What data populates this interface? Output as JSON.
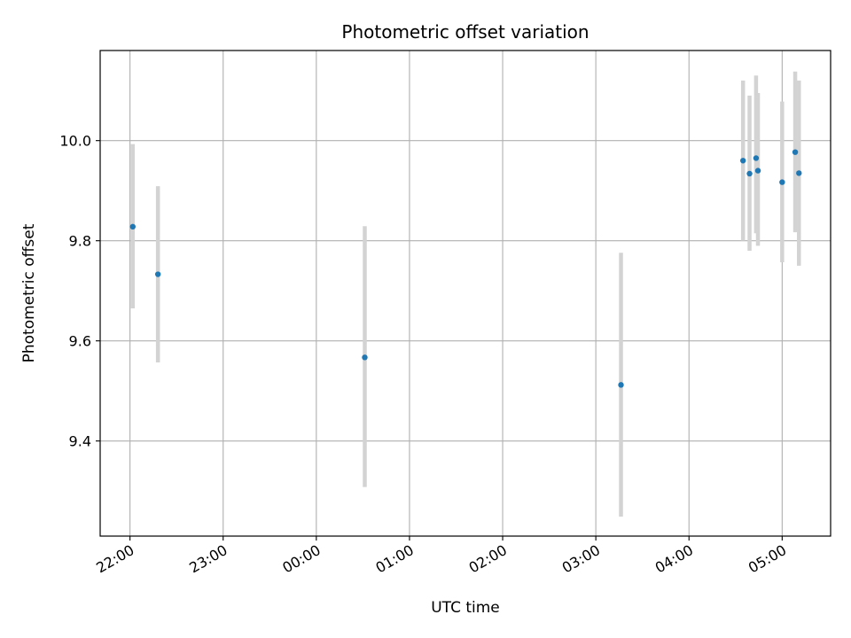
{
  "chart_data": {
    "type": "scatter",
    "title": "Photometric offset variation",
    "xlabel": "UTC time",
    "ylabel": "Photometric offset",
    "x_ticks": [
      "22:00",
      "23:00",
      "00:00",
      "01:00",
      "02:00",
      "03:00",
      "04:00",
      "05:00"
    ],
    "y_ticks": [
      "9.4",
      "9.6",
      "9.8",
      "10.0"
    ],
    "xlim_hours": [
      -0.32,
      7.52
    ],
    "ylim": [
      9.21,
      10.18
    ],
    "grid": true,
    "x_hours_since_22": [
      0.03,
      0.3,
      2.52,
      5.27,
      6.58,
      6.65,
      6.72,
      6.74,
      7.0,
      7.14,
      7.18
    ],
    "y": [
      9.828,
      9.733,
      9.567,
      9.512,
      9.96,
      9.934,
      9.965,
      9.94,
      9.917,
      9.977,
      9.935
    ],
    "yerr_low": [
      9.665,
      9.557,
      9.308,
      9.249,
      9.8,
      9.78,
      9.815,
      9.79,
      9.757,
      9.817,
      9.75
    ],
    "yerr_high": [
      9.993,
      9.909,
      9.829,
      9.776,
      10.12,
      10.09,
      10.13,
      10.095,
      10.078,
      10.138,
      10.12
    ],
    "point_color": "#1f77b4",
    "errorbar_color": "#d3d3d3"
  }
}
